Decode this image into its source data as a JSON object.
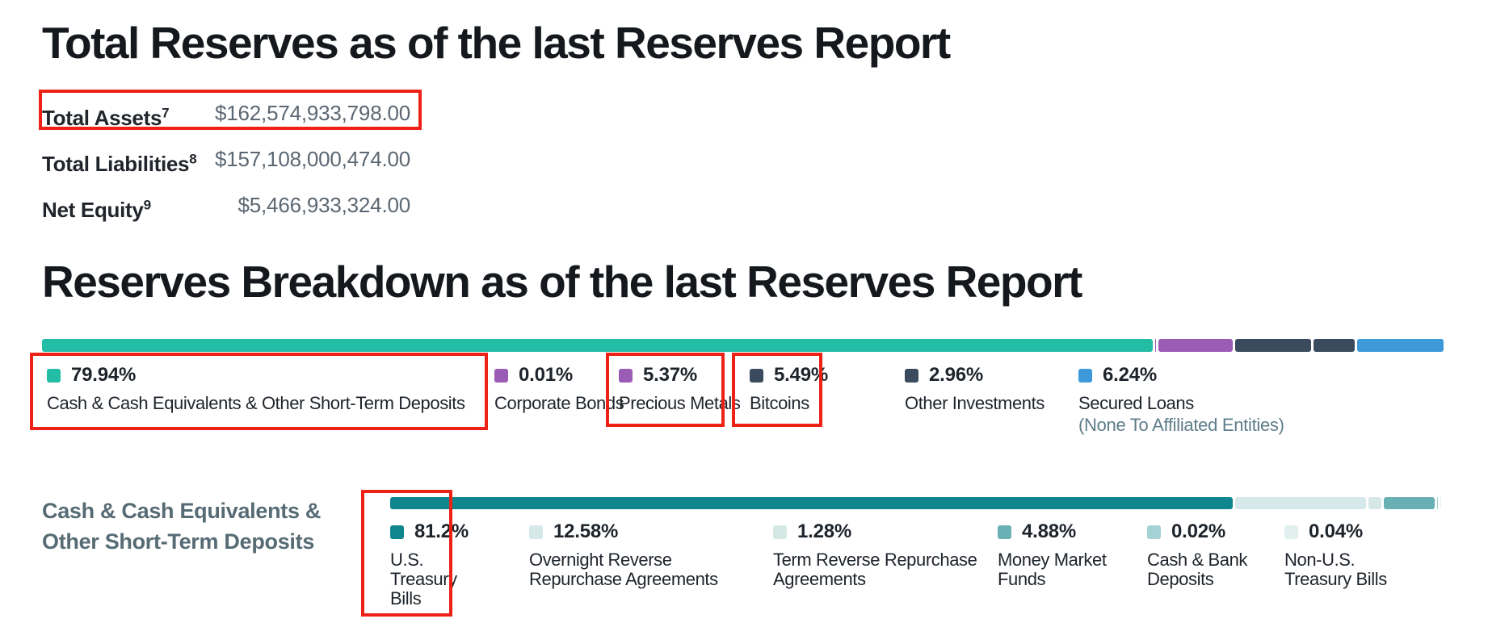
{
  "total_reserves": {
    "title": "Total Reserves as of the last Reserves Report",
    "rows": [
      {
        "label": "Total Assets",
        "footnote": "7",
        "value": "$162,574,933,798.00",
        "annotated": true
      },
      {
        "label": "Total Liabilities",
        "footnote": "8",
        "value": "$157,108,000,474.00",
        "annotated": false
      },
      {
        "label": "Net Equity",
        "footnote": "9",
        "value": "$5,466,933,324.00",
        "annotated": false
      }
    ]
  },
  "reserves_breakdown": {
    "title": "Reserves Breakdown as of the last Reserves Report"
  },
  "cash_section": {
    "title": "Cash & Cash Equivalents & Other Short-Term Deposits"
  },
  "chart_data": [
    {
      "type": "stacked-bar",
      "title": "Reserves Breakdown as of the last Reserves Report",
      "unit": "percent",
      "segments": [
        {
          "label": "Cash & Cash Equivalents & Other Short-Term Deposits",
          "pct": 79.94,
          "color": "#23bca4",
          "annotated": true
        },
        {
          "label": "Corporate Bonds",
          "pct": 0.01,
          "color": "#9a5cb5",
          "annotated": false
        },
        {
          "label": "Precious Metals",
          "pct": 5.37,
          "color": "#9a5cb5",
          "annotated": true
        },
        {
          "label": "Bitcoins",
          "pct": 5.49,
          "color": "#3a4b5e",
          "annotated": true
        },
        {
          "label": "Other Investments",
          "pct": 2.96,
          "color": "#3a4b5e",
          "annotated": false
        },
        {
          "label": "Secured Loans",
          "pct": 6.24,
          "color": "#3d99da",
          "annotated": false,
          "note": "(None To Affiliated Entities)"
        }
      ]
    },
    {
      "type": "stacked-bar",
      "title": "Cash & Cash Equivalents & Other Short-Term Deposits",
      "unit": "percent",
      "segments": [
        {
          "label": "U.S. Treasury Bills",
          "pct": 81.2,
          "color": "#0f858d",
          "annotated": true
        },
        {
          "label": "Overnight Reverse Repurchase Agreements",
          "pct": 12.58,
          "color": "#d7e8ea",
          "annotated": false
        },
        {
          "label": "Term Reverse Repurchase Agreements",
          "pct": 1.28,
          "color": "#d6e8e6",
          "annotated": false
        },
        {
          "label": "Money Market Funds",
          "pct": 4.88,
          "color": "#69b0b4",
          "annotated": false
        },
        {
          "label": "Cash & Bank Deposits",
          "pct": 0.02,
          "color": "#a5d2d4",
          "annotated": false
        },
        {
          "label": "Non-U.S. Treasury Bills",
          "pct": 0.04,
          "color": "#e1f0ee",
          "annotated": false
        }
      ]
    }
  ],
  "annotations": {
    "color": "#ed2115",
    "highlighted_items": [
      "total-assets-row",
      "cash-and-cash-equivalents-legend-item",
      "precious-metals-legend-item",
      "bitcoins-legend-item",
      "us-treasury-bills-legend-item"
    ]
  }
}
